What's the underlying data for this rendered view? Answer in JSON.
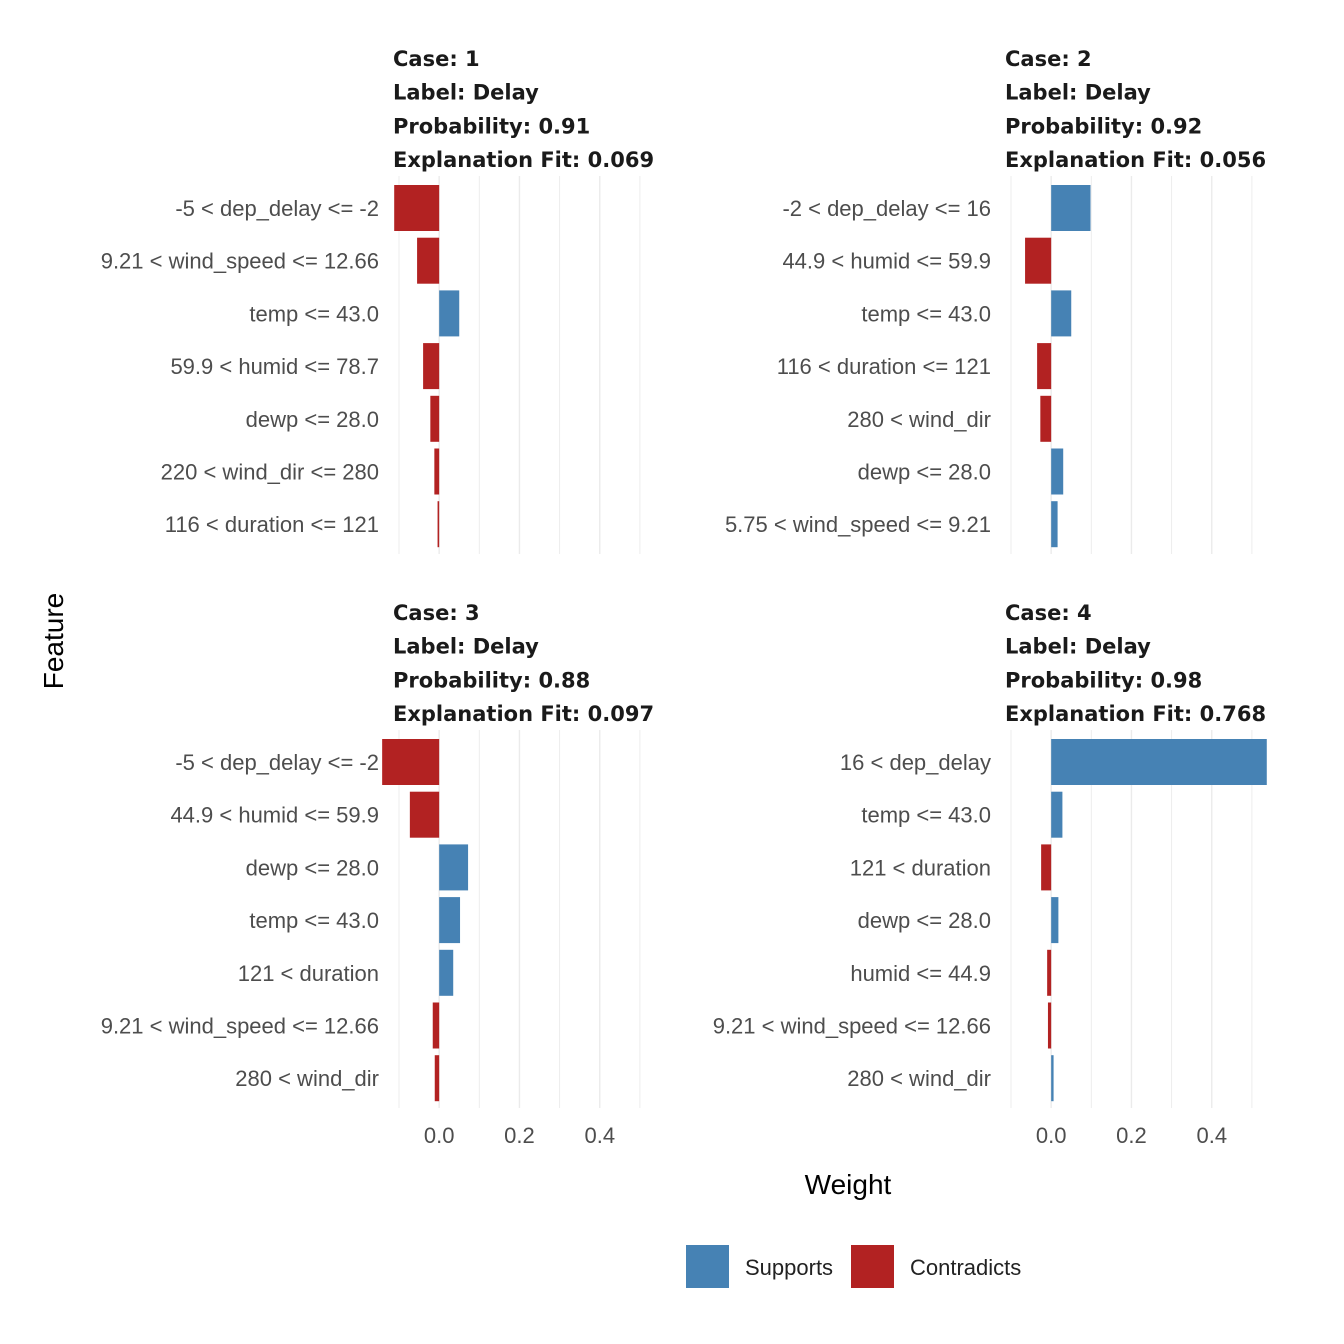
{
  "chart_data": {
    "type": "bar",
    "orientation": "horizontal",
    "xlabel": "Weight",
    "ylabel": "Feature",
    "xlim": [
      -0.11,
      0.55
    ],
    "x_ticks": [
      0.0,
      0.2,
      0.4
    ],
    "x_tick_labels": [
      "0.0",
      "0.2",
      "0.4"
    ],
    "grid": true,
    "legend": {
      "position": "bottom",
      "entries": [
        {
          "name": "Supports",
          "color": "#4682B4"
        },
        {
          "name": "Contradicts",
          "color": "#B22222"
        }
      ]
    },
    "panels": [
      {
        "case": "Case: 1",
        "label": "Label: Delay",
        "probability": "Probability: 0.91",
        "fit": "Explanation Fit: 0.069",
        "features": [
          "-5 < dep_delay <= -2",
          "9.21 < wind_speed <= 12.66",
          "temp <= 43.0",
          "59.9 < humid <= 78.7",
          "dewp <= 28.0",
          "220 < wind_dir <= 280",
          "116 < duration <= 121"
        ],
        "values": [
          -0.112,
          -0.055,
          0.05,
          -0.04,
          -0.022,
          -0.012,
          -0.004
        ]
      },
      {
        "case": "Case: 2",
        "label": "Label: Delay",
        "probability": "Probability: 0.92",
        "fit": "Explanation Fit: 0.056",
        "features": [
          "-2 < dep_delay <= 16",
          "44.9 < humid <= 59.9",
          "temp <= 43.0",
          "116 < duration <= 121",
          "280 < wind_dir",
          "dewp <= 28.0",
          "5.75 < wind_speed <= 9.21"
        ],
        "values": [
          0.098,
          -0.065,
          0.05,
          -0.035,
          -0.027,
          0.03,
          0.016
        ]
      },
      {
        "case": "Case: 3",
        "label": "Label: Delay",
        "probability": "Probability: 0.88",
        "fit": "Explanation Fit: 0.097",
        "features": [
          "-5 < dep_delay <= -2",
          "44.9 < humid <= 59.9",
          "dewp <= 28.0",
          "temp <= 43.0",
          "121 < duration",
          "9.21 < wind_speed <= 12.66",
          "280 < wind_dir"
        ],
        "values": [
          -0.142,
          -0.073,
          0.072,
          0.052,
          0.035,
          -0.016,
          -0.011
        ]
      },
      {
        "case": "Case: 4",
        "label": "Label: Delay",
        "probability": "Probability: 0.98",
        "fit": "Explanation Fit: 0.768",
        "features": [
          "16 < dep_delay",
          "temp <= 43.0",
          "121 < duration",
          "dewp <= 28.0",
          "humid <= 44.9",
          "9.21 < wind_speed <= 12.66",
          "280 < wind_dir"
        ],
        "values": [
          0.537,
          0.028,
          -0.025,
          0.018,
          -0.01,
          -0.008,
          0.006
        ]
      }
    ]
  }
}
